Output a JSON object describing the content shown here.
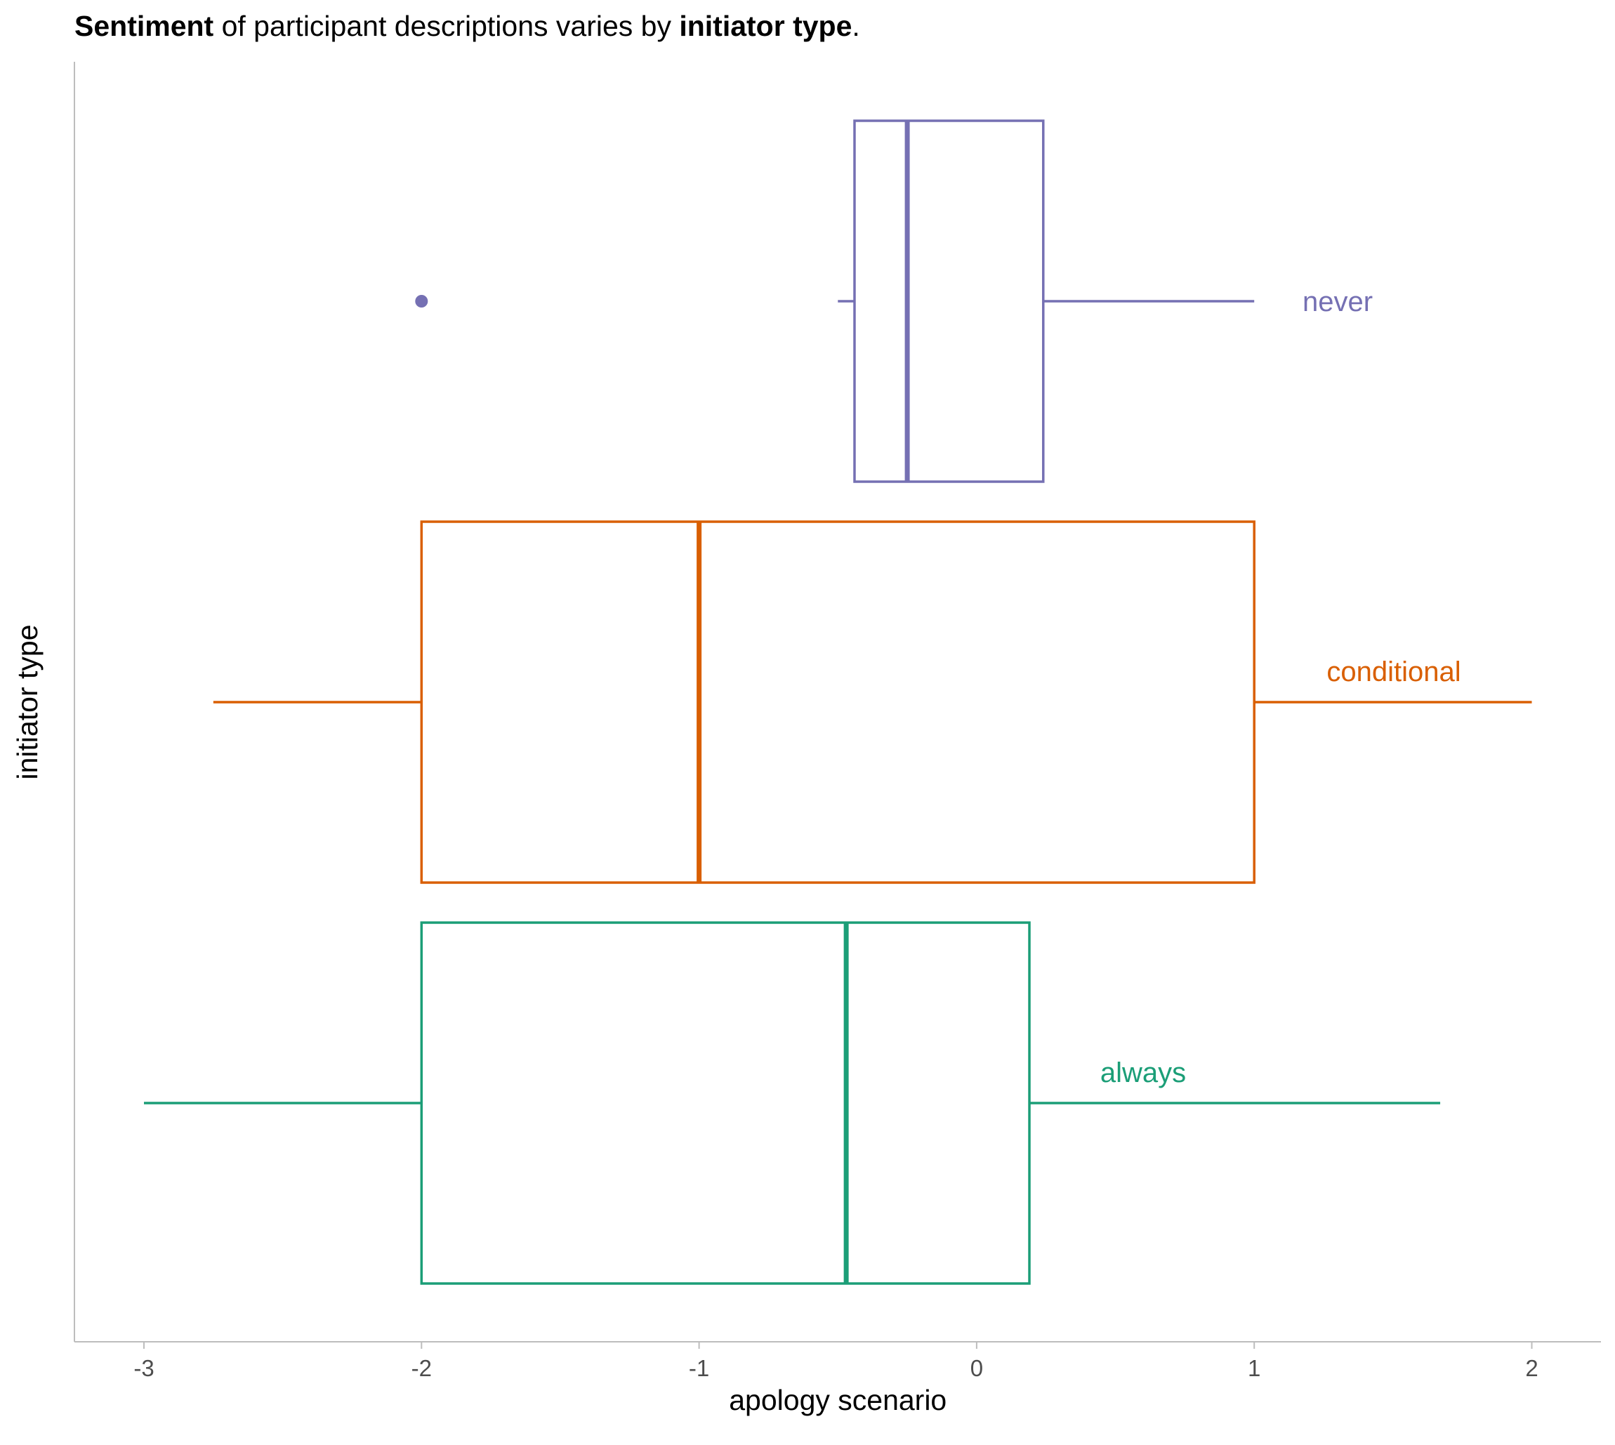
{
  "title": {
    "part1": "Sentiment",
    "part2": " of participant descriptions varies by ",
    "part3": "initiator type",
    "part4": "."
  },
  "chart_data": {
    "type": "boxplot",
    "orientation": "horizontal",
    "title": "Sentiment of participant descriptions varies by initiator type.",
    "xlabel": "apology scenario",
    "ylabel": "initiator type",
    "xlim": [
      -3.25,
      2.25
    ],
    "xticks": [
      -3,
      -2,
      -1,
      0,
      1,
      2
    ],
    "xtick_labels": [
      "-3",
      "-2",
      "-1",
      "0",
      "1",
      "2"
    ],
    "grid": false,
    "legend": "none (direct labels)",
    "groups": [
      {
        "name": "never",
        "color": "#7570b3",
        "min": -0.5,
        "q1": -0.44,
        "median": -0.25,
        "q3": 0.24,
        "max": 1.0,
        "outliers": [
          -2.0
        ]
      },
      {
        "name": "conditional",
        "color": "#d95f02",
        "min": -2.75,
        "q1": -2.0,
        "median": -1.0,
        "q3": 1.0,
        "max": 2.0,
        "outliers": []
      },
      {
        "name": "always",
        "color": "#1b9e77",
        "min": -3.0,
        "q1": -2.0,
        "median": -0.47,
        "q3": 0.19,
        "max": 1.67,
        "outliers": []
      }
    ]
  }
}
